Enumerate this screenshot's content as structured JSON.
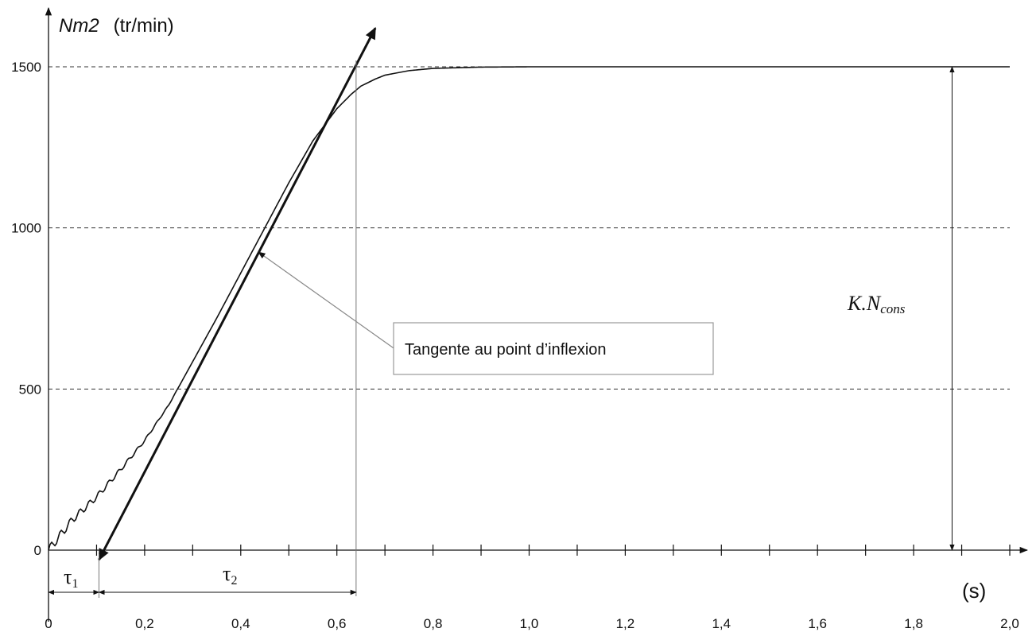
{
  "chart_data": {
    "type": "line",
    "ylabel": {
      "name": "Nm2",
      "unit": "(tr/min)"
    },
    "xlabel": "(s)",
    "xlim": [
      0,
      2.0
    ],
    "ylim": [
      0,
      1500
    ],
    "x_ticks": [
      "0",
      "0,2",
      "0,4",
      "0,6",
      "0,8",
      "1,0",
      "1,2",
      "1,4",
      "1,6",
      "1,8",
      "2,0"
    ],
    "x_tick_values": [
      0,
      0.2,
      0.4,
      0.6,
      0.8,
      1.0,
      1.2,
      1.4,
      1.6,
      1.8,
      2.0
    ],
    "y_ticks": [
      "0",
      "500",
      "1000",
      "1500"
    ],
    "y_tick_values": [
      0,
      500,
      1000,
      1500
    ],
    "dashed_grid_y": [
      500,
      1000,
      1500
    ],
    "series": [
      {
        "x": [
          0,
          0.05,
          0.1,
          0.15,
          0.2,
          0.25,
          0.3,
          0.35,
          0.4,
          0.45,
          0.5,
          0.55,
          0.6,
          0.63,
          0.65,
          0.68,
          0.7,
          0.75,
          0.8,
          0.9,
          1.0,
          1.2,
          1.5,
          2.0
        ],
        "y": [
          0,
          95,
          165,
          250,
          340,
          450,
          585,
          720,
          860,
          1000,
          1140,
          1270,
          1370,
          1415,
          1440,
          1462,
          1474,
          1488,
          1495,
          1499,
          1500,
          1500,
          1500,
          1500
        ],
        "color": "#111111"
      }
    ],
    "tangent": {
      "from": [
        0.105,
        -30
      ],
      "to": [
        0.68,
        1620
      ]
    },
    "vertical_marker_x": 0.64,
    "tau1": {
      "label": "τ",
      "sub": "1",
      "from": 0,
      "to": 0.105
    },
    "tau2": {
      "label": "τ",
      "sub": "2",
      "from": 0.105,
      "to": 0.64
    },
    "gain": {
      "label": "K.N",
      "sub": "cons",
      "x": 1.88,
      "from": 0,
      "to": 1500
    },
    "annotation": {
      "text": "Tangente au point d’inflexion",
      "point": [
        0.43,
        930
      ]
    }
  }
}
